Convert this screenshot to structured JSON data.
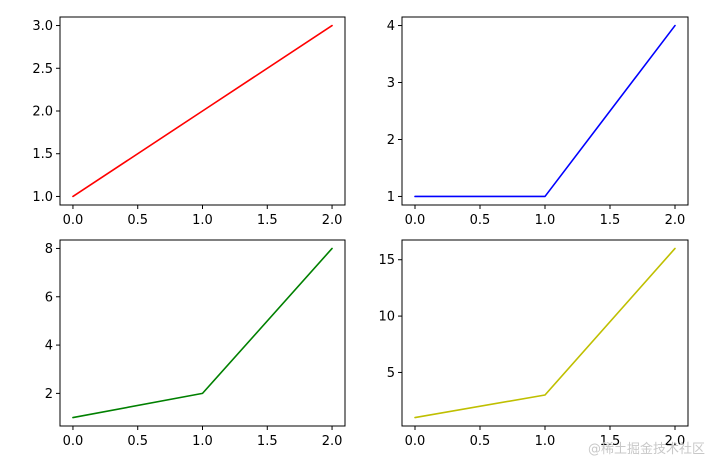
{
  "chart_data": [
    {
      "type": "line",
      "x": [
        0,
        1,
        2
      ],
      "series": [
        {
          "values": [
            1,
            2,
            3
          ],
          "color": "#ff0000"
        }
      ],
      "xlim": [
        -0.1,
        2.1
      ],
      "ylim": [
        0.9,
        3.1
      ],
      "xticks": [
        "0.0",
        "0.5",
        "1.0",
        "1.5",
        "2.0"
      ],
      "yticks": [
        "1.0",
        "1.5",
        "2.0",
        "2.5",
        "3.0"
      ],
      "xtick_values": [
        0,
        0.5,
        1,
        1.5,
        2
      ],
      "ytick_values": [
        1,
        1.5,
        2,
        2.5,
        3
      ],
      "grid": false
    },
    {
      "type": "line",
      "x": [
        0,
        1,
        2
      ],
      "series": [
        {
          "values": [
            1,
            1,
            4
          ],
          "color": "#0000ff"
        }
      ],
      "xlim": [
        -0.1,
        2.1
      ],
      "ylim": [
        0.85,
        4.15
      ],
      "xticks": [
        "0.0",
        "0.5",
        "1.0",
        "1.5",
        "2.0"
      ],
      "yticks": [
        "1",
        "2",
        "3",
        "4"
      ],
      "xtick_values": [
        0,
        0.5,
        1,
        1.5,
        2
      ],
      "ytick_values": [
        1,
        2,
        3,
        4
      ],
      "grid": false
    },
    {
      "type": "line",
      "x": [
        0,
        1,
        2
      ],
      "series": [
        {
          "values": [
            1,
            2,
            8
          ],
          "color": "#008000"
        }
      ],
      "xlim": [
        -0.1,
        2.1
      ],
      "ylim": [
        0.65,
        8.35
      ],
      "xticks": [
        "0.0",
        "0.5",
        "1.0",
        "1.5",
        "2.0"
      ],
      "yticks": [
        "2",
        "4",
        "6",
        "8"
      ],
      "xtick_values": [
        0,
        0.5,
        1,
        1.5,
        2
      ],
      "ytick_values": [
        2,
        4,
        6,
        8
      ],
      "grid": false
    },
    {
      "type": "line",
      "x": [
        0,
        1,
        2
      ],
      "series": [
        {
          "values": [
            1,
            3,
            16
          ],
          "color": "#bfbf00"
        }
      ],
      "xlim": [
        -0.1,
        2.1
      ],
      "ylim": [
        0.25,
        16.75
      ],
      "xticks": [
        "0.0",
        "0.5",
        "1.0",
        "1.5",
        "2.0"
      ],
      "yticks": [
        "5",
        "10",
        "15"
      ],
      "xtick_values": [
        0,
        0.5,
        1,
        1.5,
        2
      ],
      "ytick_values": [
        5,
        10,
        15
      ],
      "grid": false
    }
  ],
  "watermark": "@稀土掘金技术社区"
}
